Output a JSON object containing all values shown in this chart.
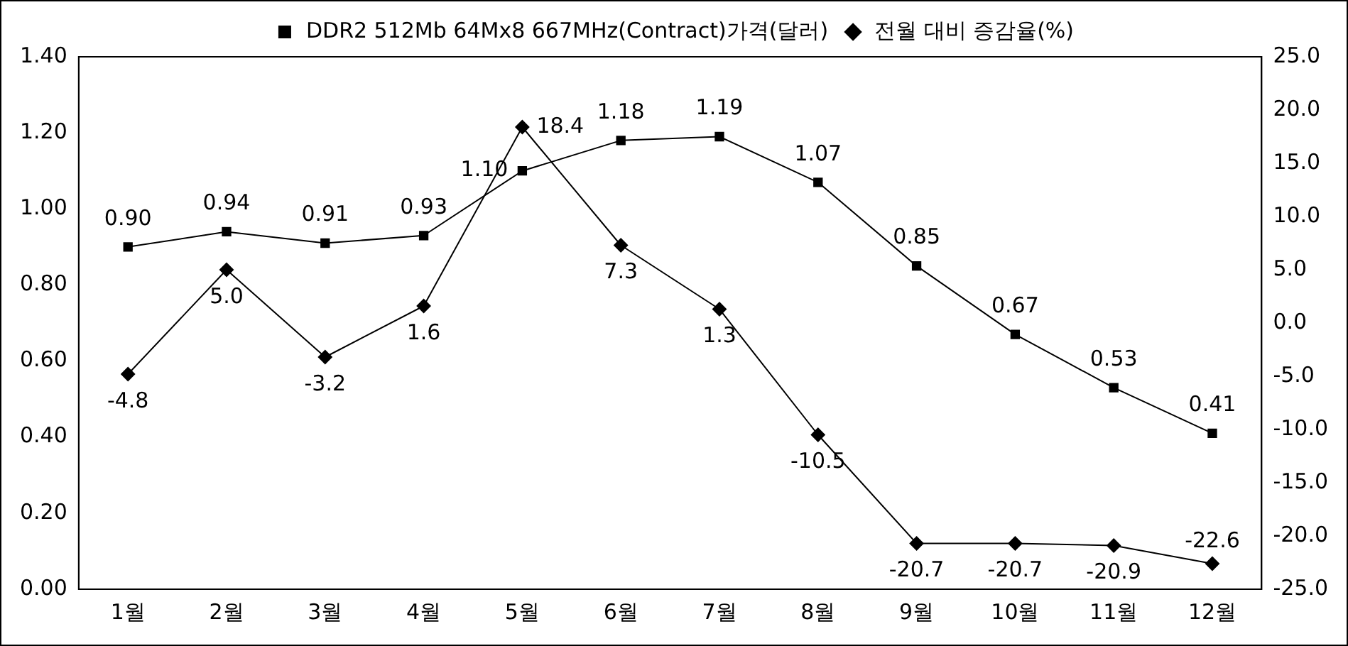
{
  "chart_data": {
    "type": "line",
    "categories": [
      "1월",
      "2월",
      "3월",
      "4월",
      "5월",
      "6월",
      "7월",
      "8월",
      "9월",
      "10월",
      "11월",
      "12월"
    ],
    "series": [
      {
        "name": "DDR2 512Mb 64Mx8 667MHz(Contract)가격(달러)",
        "color": "#000000",
        "marker": "square",
        "values": [
          0.9,
          0.94,
          0.91,
          0.93,
          1.1,
          1.18,
          1.19,
          1.07,
          0.85,
          0.67,
          0.53,
          0.41
        ],
        "value_labels": [
          "0.90",
          "0.94",
          "0.91",
          "0.93",
          "1.10",
          "1.18",
          "1.19",
          "1.07",
          "0.85",
          "0.67",
          "0.53",
          "0.41"
        ]
      },
      {
        "name": "전월 대비 증감율(%)",
        "color": "#000000",
        "marker": "diamond",
        "axis": "y2",
        "values": [
          -4.8,
          5.0,
          -3.2,
          1.6,
          18.4,
          7.3,
          1.3,
          -10.5,
          -20.7,
          -20.7,
          -20.9,
          -22.6
        ],
        "value_labels": [
          "-4.8",
          "5.0",
          "-3.2",
          "1.6",
          "18.4",
          "7.3",
          "1.3",
          "-10.5",
          "-20.7",
          "-20.7",
          "-20.9",
          "-22.6"
        ]
      }
    ],
    "ylim": [
      0,
      1.4
    ],
    "yticks": [
      {
        "value": 0,
        "label": "0.00"
      },
      {
        "value": 0.2,
        "label": "0.20"
      },
      {
        "value": 0.4,
        "label": "0.40"
      },
      {
        "value": 0.6,
        "label": "0.60"
      },
      {
        "value": 0.8,
        "label": "0.80"
      },
      {
        "value": 1.0,
        "label": "1.00"
      },
      {
        "value": 1.2,
        "label": "1.20"
      },
      {
        "value": 1.4,
        "label": "1.40"
      }
    ],
    "y2lim": [
      -25,
      25
    ],
    "y2ticks": [
      {
        "value": -25,
        "label": "-25.0"
      },
      {
        "value": -20,
        "label": "-20.0"
      },
      {
        "value": -15,
        "label": "-15.0"
      },
      {
        "value": -10,
        "label": "-10.0"
      },
      {
        "value": -5,
        "label": "-5.0"
      },
      {
        "value": 0,
        "label": "0.0"
      },
      {
        "value": 5,
        "label": "5.0"
      },
      {
        "value": 10,
        "label": "10.0"
      },
      {
        "value": 15,
        "label": "15.0"
      },
      {
        "value": 20,
        "label": "20.0"
      },
      {
        "value": 25,
        "label": "25.0"
      }
    ],
    "legend": "top",
    "grid": false,
    "line_style": "solid"
  }
}
